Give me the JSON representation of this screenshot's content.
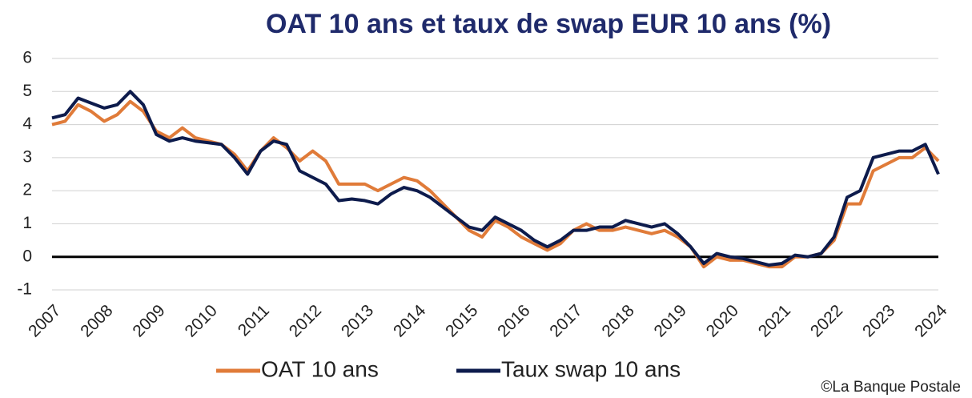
{
  "chart_data": {
    "type": "line",
    "title": "OAT 10 ans et taux de swap EUR 10 ans (%)",
    "source": "©La Banque Postale",
    "x": [
      2007,
      2007.25,
      2007.5,
      2007.75,
      2008,
      2008.25,
      2008.5,
      2008.75,
      2009,
      2009.25,
      2009.5,
      2009.75,
      2010,
      2010.25,
      2010.5,
      2010.75,
      2011,
      2011.25,
      2011.5,
      2011.75,
      2012,
      2012.25,
      2012.5,
      2012.75,
      2013,
      2013.25,
      2013.5,
      2013.75,
      2014,
      2014.25,
      2014.5,
      2014.75,
      2015,
      2015.25,
      2015.5,
      2015.75,
      2016,
      2016.25,
      2016.5,
      2016.75,
      2017,
      2017.25,
      2017.5,
      2017.75,
      2018,
      2018.25,
      2018.5,
      2018.75,
      2019,
      2019.25,
      2019.5,
      2019.75,
      2020,
      2020.25,
      2020.5,
      2020.75,
      2021,
      2021.25,
      2021.5,
      2021.75,
      2022,
      2022.25,
      2022.5,
      2022.75,
      2023,
      2023.25,
      2023.5,
      2023.75,
      2024
    ],
    "series": [
      {
        "name": "OAT 10 ans",
        "color": "#e07b39",
        "values": [
          4.0,
          4.1,
          4.6,
          4.4,
          4.1,
          4.3,
          4.7,
          4.4,
          3.8,
          3.6,
          3.9,
          3.6,
          3.5,
          3.4,
          3.1,
          2.6,
          3.2,
          3.6,
          3.3,
          2.9,
          3.2,
          2.9,
          2.2,
          2.2,
          2.2,
          2.0,
          2.2,
          2.4,
          2.3,
          2.0,
          1.6,
          1.2,
          0.8,
          0.6,
          1.1,
          0.9,
          0.6,
          0.4,
          0.2,
          0.4,
          0.8,
          1.0,
          0.8,
          0.8,
          0.9,
          0.8,
          0.7,
          0.8,
          0.6,
          0.3,
          -0.3,
          0.0,
          -0.1,
          -0.1,
          -0.2,
          -0.3,
          -0.3,
          0.0,
          0.0,
          0.1,
          0.5,
          1.6,
          1.6,
          2.6,
          2.8,
          3.0,
          3.0,
          3.3,
          2.9
        ]
      },
      {
        "name": "Taux swap 10 ans",
        "color": "#0d1b4c",
        "values": [
          4.2,
          4.3,
          4.8,
          4.65,
          4.5,
          4.6,
          5.0,
          4.6,
          3.7,
          3.5,
          3.6,
          3.5,
          3.45,
          3.4,
          3.0,
          2.5,
          3.2,
          3.5,
          3.4,
          2.6,
          2.4,
          2.2,
          1.7,
          1.75,
          1.7,
          1.6,
          1.9,
          2.1,
          2.0,
          1.8,
          1.5,
          1.2,
          0.9,
          0.8,
          1.2,
          1.0,
          0.8,
          0.5,
          0.3,
          0.5,
          0.8,
          0.8,
          0.9,
          0.9,
          1.1,
          1.0,
          0.9,
          1.0,
          0.7,
          0.3,
          -0.2,
          0.1,
          0.0,
          -0.05,
          -0.15,
          -0.25,
          -0.2,
          0.05,
          0.0,
          0.1,
          0.6,
          1.8,
          2.0,
          3.0,
          3.1,
          3.2,
          3.2,
          3.4,
          2.5
        ]
      }
    ],
    "xlim": [
      2007,
      2024
    ],
    "xticks": [
      2007,
      2008,
      2009,
      2010,
      2011,
      2012,
      2013,
      2014,
      2015,
      2016,
      2017,
      2018,
      2019,
      2020,
      2021,
      2022,
      2023,
      2024
    ],
    "ylim": [
      -1,
      6
    ],
    "yticks": [
      -1,
      0,
      1,
      2,
      3,
      4,
      5,
      6
    ],
    "grid": true,
    "legend": "bottom"
  }
}
